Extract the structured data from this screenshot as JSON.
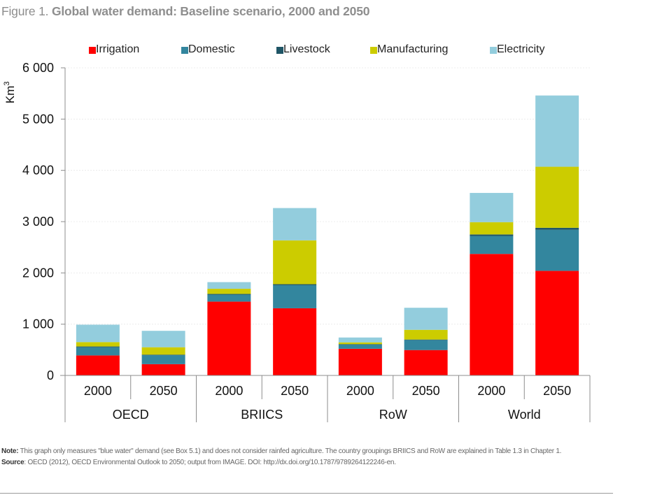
{
  "figure": {
    "label": "Figure 1.",
    "title": "Global water demand: Baseline scenario, 2000 and 2050"
  },
  "chart_data": {
    "type": "bar",
    "stacked": true,
    "title": "Global water demand: Baseline scenario, 2000 and 2050",
    "ylabel": "Km³",
    "ylabel_base": "Km",
    "ylabel_sup": "3",
    "xlabel": "",
    "ylim": [
      0,
      6000
    ],
    "yticks": [
      0,
      1000,
      2000,
      3000,
      4000,
      5000,
      6000
    ],
    "ytick_labels": [
      "0",
      "1 000",
      "2 000",
      "3 000",
      "4 000",
      "5 000",
      "6 000"
    ],
    "grid": true,
    "legend_position": "top",
    "groups": [
      "OECD",
      "BRIICS",
      "RoW",
      "World"
    ],
    "categories": [
      "2000",
      "2050",
      "2000",
      "2050",
      "2000",
      "2050",
      "2000",
      "2050"
    ],
    "category_groups": [
      "OECD",
      "OECD",
      "BRIICS",
      "BRIICS",
      "RoW",
      "RoW",
      "World",
      "World"
    ],
    "series": [
      {
        "name": "Irrigation",
        "color": "#FF0000",
        "values": [
          390,
          220,
          1440,
          1310,
          520,
          495,
          2370,
          2040
        ]
      },
      {
        "name": "Domestic",
        "color": "#33869E",
        "values": [
          160,
          175,
          135,
          450,
          80,
          195,
          350,
          800
        ]
      },
      {
        "name": "Livestock",
        "color": "#1F5566",
        "values": [
          15,
          10,
          15,
          20,
          10,
          10,
          30,
          40
        ]
      },
      {
        "name": "Manufacturing",
        "color": "#CCCC00",
        "values": [
          85,
          145,
          100,
          855,
          35,
          190,
          240,
          1190
        ]
      },
      {
        "name": "Electricity",
        "color": "#93CDDD",
        "values": [
          340,
          320,
          130,
          630,
          95,
          430,
          570,
          1390
        ]
      }
    ]
  },
  "notes": {
    "note_label": "Note:",
    "note_text": " This graph only measures \"blue water\" demand (see Box 5.1) and does not consider rainfed agriculture. The country groupings BRIICS and RoW are explained in Table 1.3 in Chapter 1.",
    "source_label": "Source",
    "source_text": ": OECD (2012), OECD Environmental Outlook to 2050; output from IMAGE.  DOI: http://dx.doi.org/10.1787/9789264122246-en."
  }
}
